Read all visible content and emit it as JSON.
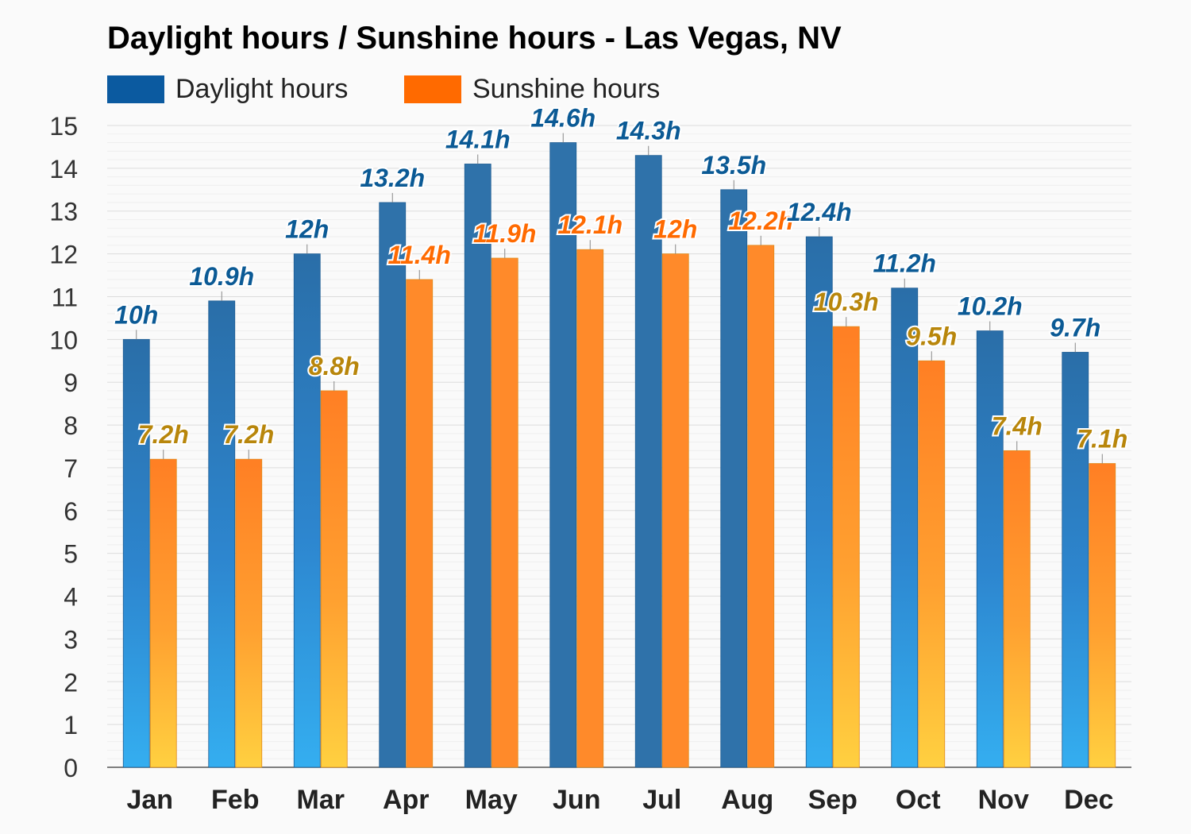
{
  "title": "Daylight hours / Sunshine hours - Las Vegas, NV",
  "legend": [
    {
      "label": "Daylight hours",
      "color": "#0b5aa0"
    },
    {
      "label": "Sunshine hours",
      "color": "#ff6a00"
    }
  ],
  "chart_data": {
    "type": "bar",
    "title": "Daylight hours / Sunshine hours - Las Vegas, NV",
    "categories": [
      "Jan",
      "Feb",
      "Mar",
      "Apr",
      "May",
      "Jun",
      "Jul",
      "Aug",
      "Sep",
      "Oct",
      "Nov",
      "Dec"
    ],
    "series": [
      {
        "name": "Daylight hours",
        "values": [
          10,
          10.9,
          12,
          13.2,
          14.1,
          14.6,
          14.3,
          13.5,
          12.4,
          11.2,
          10.2,
          9.7
        ],
        "labels": [
          "10h",
          "10.9h",
          "12h",
          "13.2h",
          "14.1h",
          "14.6h",
          "14.3h",
          "13.5h",
          "12.4h",
          "11.2h",
          "10.2h",
          "9.7h"
        ]
      },
      {
        "name": "Sunshine hours",
        "values": [
          7.2,
          7.2,
          8.8,
          11.4,
          11.9,
          12.1,
          12,
          12.2,
          10.3,
          9.5,
          7.4,
          7.1
        ],
        "labels": [
          "7.2h",
          "7.2h",
          "8.8h",
          "11.4h",
          "11.9h",
          "12.1h",
          "12h",
          "12.2h",
          "10.3h",
          "9.5h",
          "7.4h",
          "7.1h"
        ]
      }
    ],
    "ylim": [
      0,
      15
    ],
    "yticks": [
      0,
      1,
      2,
      3,
      4,
      5,
      6,
      7,
      8,
      9,
      10,
      11,
      12,
      13,
      14,
      15
    ],
    "xlabel": "",
    "ylabel": "",
    "grid": true,
    "legend_position": "top-left"
  }
}
